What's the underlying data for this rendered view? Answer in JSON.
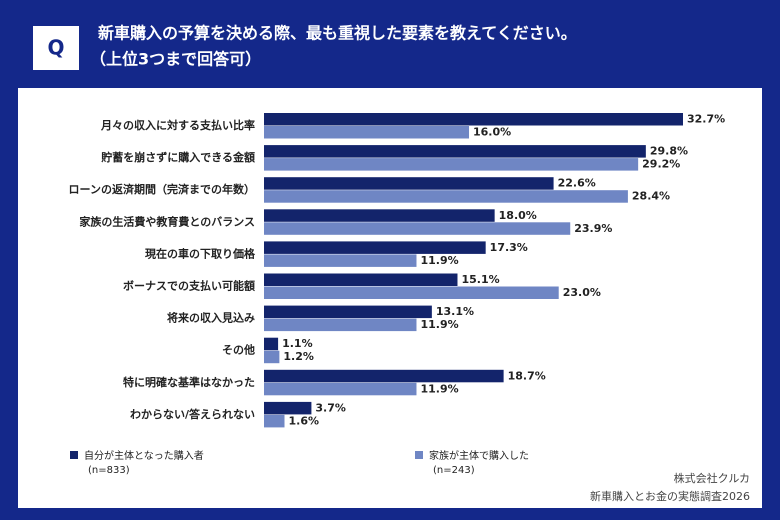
{
  "chart_data": {
    "type": "bar",
    "orientation": "horizontal",
    "badge": "Q",
    "title": "新車購入の予算を決める際、最も重視した要素を教えてください。",
    "subtitle": "（上位3つまで回答可）",
    "categories": [
      "月々の収入に対する支払い比率",
      "貯蓄を崩さずに購入できる金額",
      "ローンの返済期間（完済までの年数）",
      "家族の生活費や教育費とのバランス",
      "現在の車の下取り価格",
      "ボーナスでの支払い可能額",
      "将来の収入見込み",
      "その他",
      "特に明確な基準はなかった",
      "わからない/答えられない"
    ],
    "series": [
      {
        "name": "自分が主体となった購入者",
        "note": "(n=833)",
        "color": "#13246b",
        "values": [
          32.7,
          29.8,
          22.6,
          18.0,
          17.3,
          15.1,
          13.1,
          1.1,
          18.7,
          3.7
        ],
        "value_labels": [
          "32.7%",
          "29.8%",
          "22.6%",
          "18.0%",
          "17.3%",
          "15.1%",
          "13.1%",
          "1.1%",
          "18.7%",
          "3.7%"
        ]
      },
      {
        "name": "家族が主体で購入した",
        "note": "(n=243)",
        "color": "#6f86c4",
        "values": [
          16.0,
          29.2,
          28.4,
          23.9,
          11.9,
          23.0,
          11.9,
          1.2,
          11.9,
          1.6
        ],
        "value_labels": [
          "16.0%",
          "29.2%",
          "28.4%",
          "23.9%",
          "11.9%",
          "23.0%",
          "11.9%",
          "1.2%",
          "11.9%",
          "1.6%"
        ]
      }
    ],
    "source": [
      "株式会社クルカ",
      "新車購入とお金の実態調査2026"
    ]
  }
}
